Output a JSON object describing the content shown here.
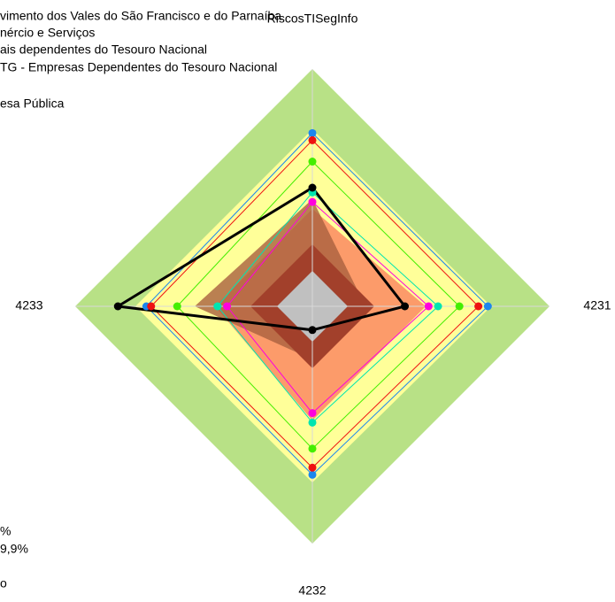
{
  "chart_data": {
    "type": "radar",
    "axes": [
      "RiscosTISegInfo",
      "4231",
      "4232",
      "4233"
    ],
    "rlim": [
      0,
      100
    ],
    "legend_text": [
      "vimento dos Vales do São Francisco e do Parnaíba",
      "nércio e Serviços",
      "ais dependentes do Tesouro Nacional",
      "TG - Empresas Dependentes do Tesouro Nacional",
      "esa Pública",
      "%",
      "9,9%",
      "o"
    ],
    "series": [
      {
        "color": "#1c86ee",
        "values": [
          73,
          74,
          71,
          70
        ]
      },
      {
        "color": "#ee1111",
        "values": [
          70,
          70,
          68,
          68
        ]
      },
      {
        "color": "#44ee00",
        "values": [
          61,
          62,
          60,
          57
        ]
      },
      {
        "color": "#00e5b0",
        "values": [
          48,
          53,
          49,
          40
        ]
      },
      {
        "color": "#ff00dd",
        "values": [
          44,
          49,
          45,
          36
        ]
      },
      {
        "color": "#000000",
        "values": [
          50,
          39,
          10,
          82
        ]
      }
    ]
  }
}
